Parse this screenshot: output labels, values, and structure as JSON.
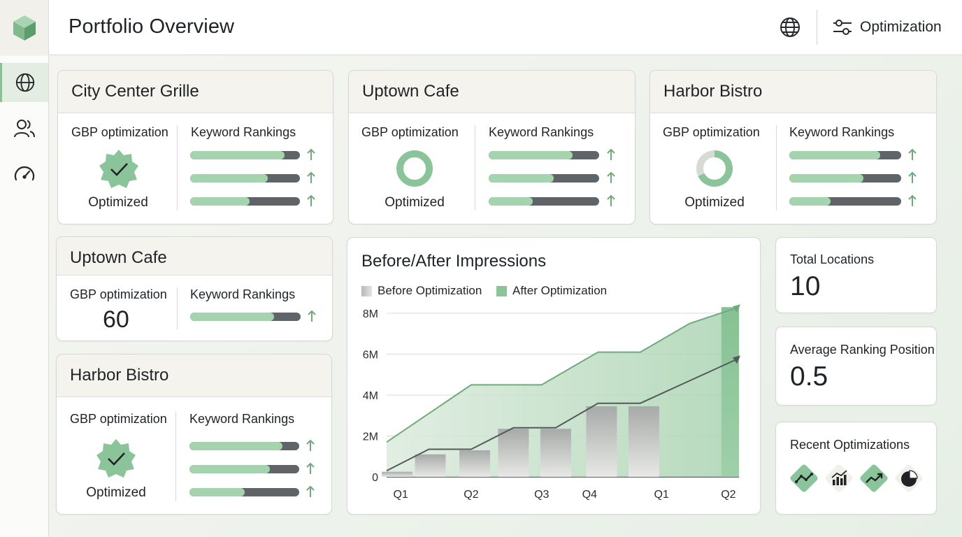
{
  "header": {
    "title": "Portfolio Overview",
    "optimization_label": "Optimization"
  },
  "sidebar": {
    "items": [
      {
        "name": "globe",
        "active": true
      },
      {
        "name": "users",
        "active": false
      },
      {
        "name": "speedometer",
        "active": false
      }
    ]
  },
  "locations": [
    {
      "name": "City Center Grille",
      "gbp_label": "GBP optimization",
      "keyword_label": "Keyword Rankings",
      "status": "Optimized",
      "status_icon": "check-badge-icon",
      "rankings": [
        0.86,
        0.71,
        0.54
      ]
    },
    {
      "name": "Uptown Cafe",
      "gbp_label": "GBP optimization",
      "keyword_label": "Keyword Rankings",
      "status": "Optimized",
      "status_icon": "donut-progress-icon",
      "rankings": [
        0.76,
        0.59,
        0.4
      ]
    },
    {
      "name": "Harbor Bistro",
      "gbp_label": "GBP optimization",
      "keyword_label": "Keyword Rankings",
      "status": "Optimized",
      "status_icon": "donut-progress-icon",
      "rankings": [
        0.81,
        0.66,
        0.37
      ]
    },
    {
      "name": "Uptown Cafe",
      "gbp_label": "GBP optimization",
      "keyword_label": "Keyword Rankings",
      "score": "60",
      "rankings": [
        0.76
      ]
    },
    {
      "name": "Harbor Bistro",
      "gbp_label": "GBP optimization",
      "keyword_label": "Keyword Rankings",
      "status": "Optimized",
      "status_icon": "check-badge-icon",
      "rankings": [
        0.85,
        0.73,
        0.5
      ]
    }
  ],
  "stats": {
    "total_locations_label": "Total Locations",
    "total_locations": "10",
    "avg_rank_label": "Average Ranking Position",
    "avg_rank": "0.5",
    "recent_label": "Recent Optimizations",
    "recent_icons": [
      "trend-line-icon",
      "bar-chart-icon",
      "trending-up-icon",
      "pie-chart-icon"
    ]
  },
  "colors": {
    "accent": "#8cc49a",
    "bar_fill": "#a5d3ae",
    "bar_track": "#5f6468",
    "after_line": "#6fa97c",
    "before_line": "#55595c"
  },
  "chart_data": {
    "type": "area",
    "title": "Before/After Impressions",
    "legend": [
      "Before Optimization",
      "After Optimization"
    ],
    "categories": [
      "Q1",
      "Q2",
      "Q3",
      "Q4",
      "Q1",
      "Q2"
    ],
    "y_ticks": [
      "0",
      "2M",
      "4M",
      "6M",
      "8M"
    ],
    "ylim": [
      0,
      8000000
    ],
    "grid": true,
    "legend_position": "top-left",
    "series": [
      {
        "name": "After Optimization",
        "x": [
          0,
          1.2,
          2.2,
          3.0,
          3.6,
          4.3,
          5.0
        ],
        "values": [
          1700000,
          4500000,
          4500000,
          6100000,
          6100000,
          7500000,
          8300000
        ]
      },
      {
        "name": "Before Optimization",
        "x": [
          0,
          0.6,
          1.2,
          1.8,
          2.4,
          3.0,
          3.6,
          4.3,
          5.0
        ],
        "values": [
          300000,
          1350000,
          1350000,
          2400000,
          2400000,
          3600000,
          3600000,
          4700000,
          5800000
        ]
      }
    ],
    "bars": {
      "name": "Before Optimization",
      "x": [
        0.15,
        0.62,
        1.25,
        1.8,
        2.4,
        3.05,
        3.65
      ],
      "values": [
        250000,
        1100000,
        1300000,
        2350000,
        2350000,
        3450000,
        3450000
      ]
    }
  }
}
